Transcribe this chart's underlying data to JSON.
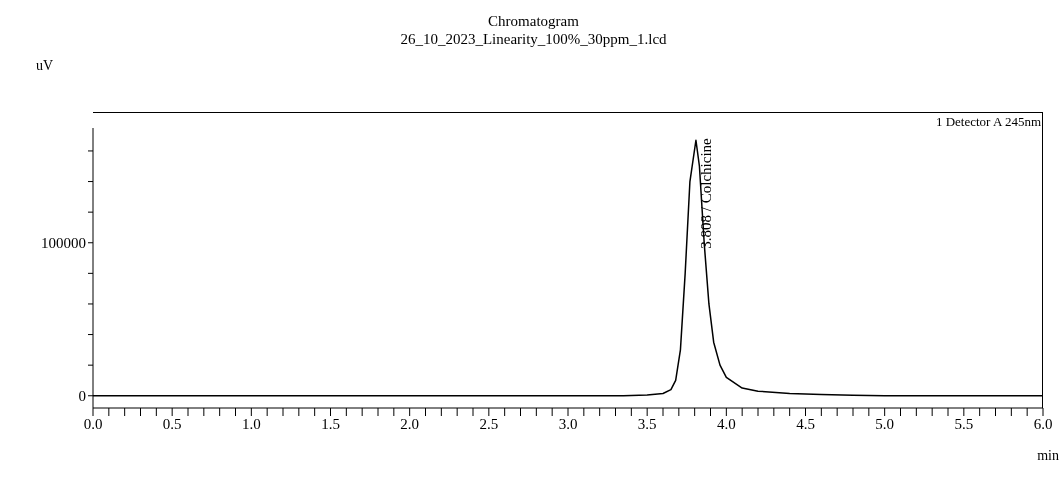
{
  "chart_data": {
    "type": "line",
    "title": "Chromatogram",
    "subtitle": "26_10_2023_Linearity_100%_30ppm_1.lcd",
    "xlabel": "min",
    "ylabel": "uV",
    "x": [
      0,
      1,
      2,
      3,
      3.35,
      3.5,
      3.6,
      3.65,
      3.68,
      3.71,
      3.74,
      3.77,
      3.808,
      3.83,
      3.86,
      3.89,
      3.92,
      3.96,
      4.0,
      4.1,
      4.2,
      4.4,
      4.6,
      4.8,
      5.0,
      5.5,
      6.0
    ],
    "series": [
      {
        "name": "1 Detector A 245nm",
        "color": "#000000",
        "values": [
          0,
          0,
          0,
          0,
          0,
          500,
          1500,
          4000,
          10000,
          30000,
          80000,
          140000,
          167000,
          150000,
          100000,
          60000,
          35000,
          20000,
          12000,
          5000,
          3000,
          1500,
          800,
          300,
          0,
          0,
          0
        ]
      }
    ],
    "annotations": [
      {
        "text": "3.808 / Colchicine",
        "x": 3.808,
        "y": 167000
      }
    ],
    "xlim": [
      0,
      6
    ],
    "ylim": [
      -8000,
      175000
    ],
    "xticks": [
      {
        "value": 0,
        "label": "0.0"
      },
      {
        "value": 0.1,
        "label": null
      },
      {
        "value": 0.2,
        "label": null
      },
      {
        "value": 0.3,
        "label": null
      },
      {
        "value": 0.4,
        "label": null
      },
      {
        "value": 0.5,
        "label": "0.5"
      },
      {
        "value": 0.6,
        "label": null
      },
      {
        "value": 0.7,
        "label": null
      },
      {
        "value": 0.8,
        "label": null
      },
      {
        "value": 0.9,
        "label": null
      },
      {
        "value": 1,
        "label": "1.0"
      },
      {
        "value": 1.1,
        "label": null
      },
      {
        "value": 1.2,
        "label": null
      },
      {
        "value": 1.3,
        "label": null
      },
      {
        "value": 1.4,
        "label": null
      },
      {
        "value": 1.5,
        "label": "1.5"
      },
      {
        "value": 1.6,
        "label": null
      },
      {
        "value": 1.7,
        "label": null
      },
      {
        "value": 1.8,
        "label": null
      },
      {
        "value": 1.9,
        "label": null
      },
      {
        "value": 2,
        "label": "2.0"
      },
      {
        "value": 2.1,
        "label": null
      },
      {
        "value": 2.2,
        "label": null
      },
      {
        "value": 2.3,
        "label": null
      },
      {
        "value": 2.4,
        "label": null
      },
      {
        "value": 2.5,
        "label": "2.5"
      },
      {
        "value": 2.6,
        "label": null
      },
      {
        "value": 2.7,
        "label": null
      },
      {
        "value": 2.8,
        "label": null
      },
      {
        "value": 2.9,
        "label": null
      },
      {
        "value": 3,
        "label": "3.0"
      },
      {
        "value": 3.1,
        "label": null
      },
      {
        "value": 3.2,
        "label": null
      },
      {
        "value": 3.3,
        "label": null
      },
      {
        "value": 3.4,
        "label": null
      },
      {
        "value": 3.5,
        "label": "3.5"
      },
      {
        "value": 3.6,
        "label": null
      },
      {
        "value": 3.7,
        "label": null
      },
      {
        "value": 3.8,
        "label": null
      },
      {
        "value": 3.9,
        "label": null
      },
      {
        "value": 4,
        "label": "4.0"
      },
      {
        "value": 4.1,
        "label": null
      },
      {
        "value": 4.2,
        "label": null
      },
      {
        "value": 4.3,
        "label": null
      },
      {
        "value": 4.4,
        "label": null
      },
      {
        "value": 4.5,
        "label": "4.5"
      },
      {
        "value": 4.6,
        "label": null
      },
      {
        "value": 4.7,
        "label": null
      },
      {
        "value": 4.8,
        "label": null
      },
      {
        "value": 4.9,
        "label": null
      },
      {
        "value": 5,
        "label": "5.0"
      },
      {
        "value": 5.1,
        "label": null
      },
      {
        "value": 5.2,
        "label": null
      },
      {
        "value": 5.3,
        "label": null
      },
      {
        "value": 5.4,
        "label": null
      },
      {
        "value": 5.5,
        "label": "5.5"
      },
      {
        "value": 5.6,
        "label": null
      },
      {
        "value": 5.7,
        "label": null
      },
      {
        "value": 5.8,
        "label": null
      },
      {
        "value": 5.9,
        "label": null
      },
      {
        "value": 6,
        "label": "6.0"
      }
    ],
    "yticks": [
      0,
      {
        "value": 20000,
        "label": null
      },
      {
        "value": 40000,
        "label": null
      },
      {
        "value": 60000,
        "label": null
      },
      {
        "value": 80000,
        "label": null
      },
      100000,
      {
        "value": 120000,
        "label": null
      },
      {
        "value": 140000,
        "label": null
      },
      {
        "value": 160000,
        "label": null
      }
    ],
    "grid": false,
    "legend": "top right",
    "marker": "none",
    "line_style": "solid"
  }
}
